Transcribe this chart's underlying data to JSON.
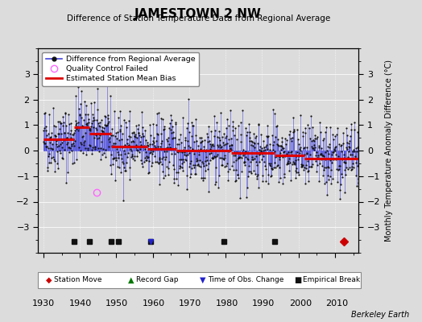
{
  "title": "JAMESTOWN 2 NW",
  "subtitle": "Difference of Station Temperature Data from Regional Average",
  "ylabel": "Monthly Temperature Anomaly Difference (°C)",
  "xlim": [
    1928.5,
    2016.5
  ],
  "ylim": [
    -4,
    4
  ],
  "yticks": [
    -3,
    -2,
    -1,
    0,
    1,
    2,
    3
  ],
  "xticks": [
    1930,
    1940,
    1950,
    1960,
    1970,
    1980,
    1990,
    2000,
    2010
  ],
  "background_color": "#dcdcdc",
  "plot_background": "#dcdcdc",
  "line_color": "#4444dd",
  "dot_color": "#111111",
  "bias_color": "#dd0000",
  "qc_color": "#ff66ff",
  "station_move_color": "#cc0000",
  "record_gap_color": "#007700",
  "tobs_color": "#2222cc",
  "empirical_color": "#111111",
  "seed": 42,
  "start_year": 1930,
  "end_year": 2016,
  "segments": [
    {
      "start": 1930.0,
      "end": 1938.5,
      "bias": 0.45
    },
    {
      "start": 1938.5,
      "end": 1942.5,
      "bias": 0.9
    },
    {
      "start": 1942.5,
      "end": 1948.5,
      "bias": 0.65
    },
    {
      "start": 1948.5,
      "end": 1958.5,
      "bias": 0.15
    },
    {
      "start": 1958.5,
      "end": 1966.5,
      "bias": 0.05
    },
    {
      "start": 1966.5,
      "end": 1981.5,
      "bias": 0.0
    },
    {
      "start": 1981.5,
      "end": 1993.5,
      "bias": -0.1
    },
    {
      "start": 1993.5,
      "end": 2001.5,
      "bias": -0.2
    },
    {
      "start": 2001.5,
      "end": 2016.5,
      "bias": -0.3
    }
  ],
  "station_moves": [
    2012.5
  ],
  "empirical_breaks": [
    1938.5,
    1942.5,
    1948.5,
    1950.5,
    1959.5,
    1979.5,
    1993.5
  ],
  "tobs_changes": [
    1959.5
  ],
  "record_gaps": [],
  "qc_failures_xy": [
    [
      1944.5,
      -1.65
    ]
  ],
  "berkeley_earth_text": "Berkeley Earth"
}
